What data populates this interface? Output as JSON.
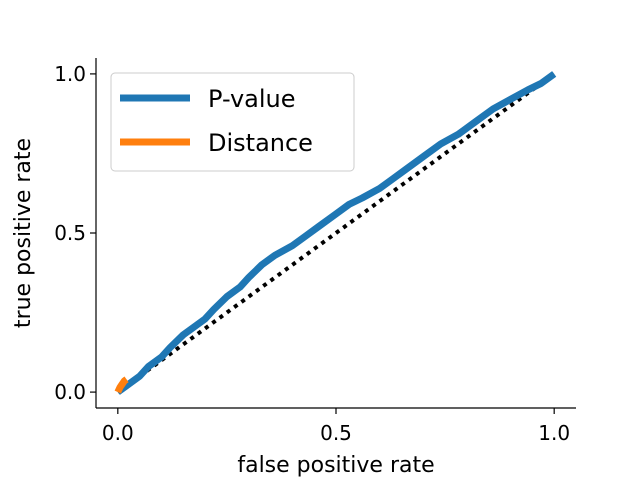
{
  "chart_data": {
    "type": "line",
    "title": "",
    "xlabel": "false positive rate",
    "ylabel": "true positive rate",
    "xlim": [
      -0.05,
      1.05
    ],
    "ylim": [
      -0.05,
      1.05
    ],
    "xticks": [
      0.0,
      0.5,
      1.0
    ],
    "yticks": [
      0.0,
      0.5,
      1.0
    ],
    "xtick_labels": [
      "0.0",
      "0.5",
      "1.0"
    ],
    "ytick_labels": [
      "0.0",
      "0.5",
      "1.0"
    ],
    "grid": false,
    "spines": [
      "left",
      "bottom"
    ],
    "legend_position": "top-left",
    "series": [
      {
        "name": "P-value",
        "color": "#1f77b4",
        "x": [
          0.0,
          0.03,
          0.05,
          0.07,
          0.1,
          0.12,
          0.15,
          0.18,
          0.2,
          0.22,
          0.25,
          0.28,
          0.3,
          0.33,
          0.36,
          0.4,
          0.43,
          0.46,
          0.5,
          0.53,
          0.56,
          0.6,
          0.63,
          0.66,
          0.7,
          0.74,
          0.78,
          0.82,
          0.86,
          0.9,
          0.94,
          0.97,
          1.0
        ],
        "y": [
          0.0,
          0.03,
          0.05,
          0.08,
          0.11,
          0.14,
          0.18,
          0.21,
          0.23,
          0.26,
          0.3,
          0.33,
          0.36,
          0.4,
          0.43,
          0.46,
          0.49,
          0.52,
          0.56,
          0.59,
          0.61,
          0.64,
          0.67,
          0.7,
          0.74,
          0.78,
          0.81,
          0.85,
          0.89,
          0.92,
          0.95,
          0.97,
          1.0
        ]
      },
      {
        "name": "Distance",
        "color": "#ff7f0e",
        "x": [
          0.0,
          0.005,
          0.01,
          0.015,
          0.02
        ],
        "y": [
          0.0,
          0.015,
          0.025,
          0.035,
          0.04
        ]
      }
    ],
    "reference_line": {
      "x": [
        0.0,
        1.0
      ],
      "y": [
        0.0,
        1.0
      ],
      "color": "#000000",
      "style": "dotted"
    }
  }
}
